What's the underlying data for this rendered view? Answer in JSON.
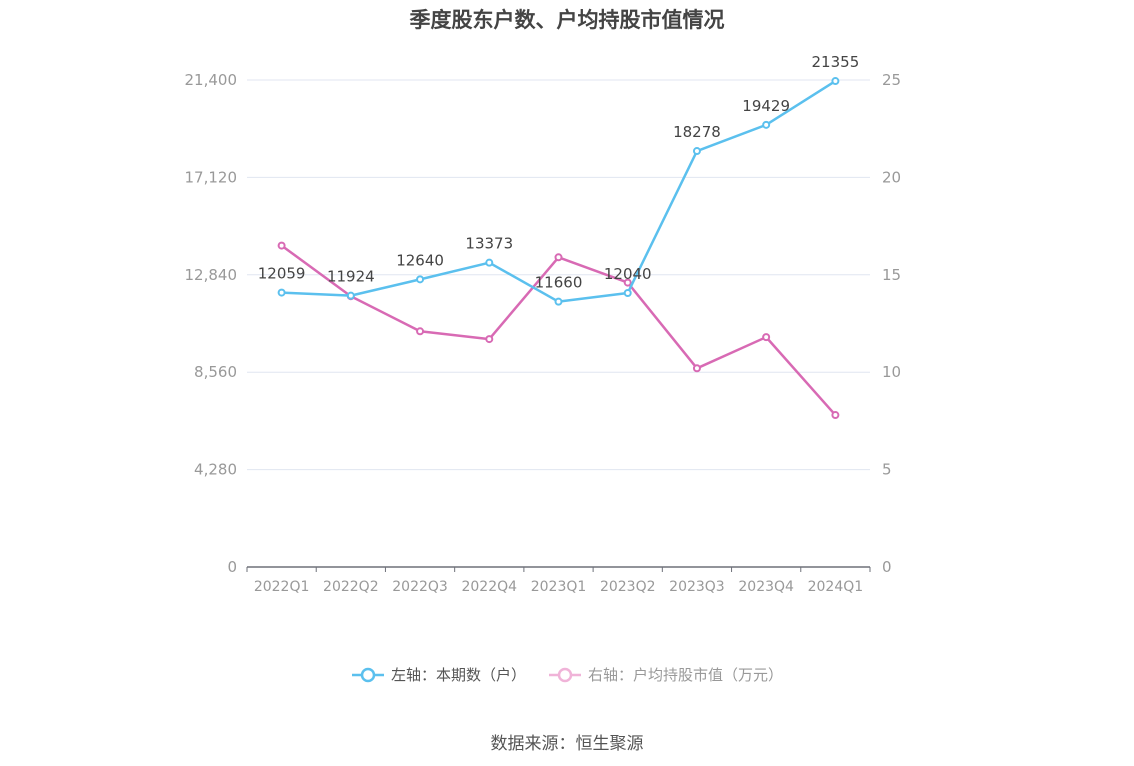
{
  "title": "季度股东户数、户均持股市值情况",
  "source": "数据来源：恒生聚源",
  "chart_data": {
    "type": "line",
    "categories": [
      "2022Q1",
      "2022Q2",
      "2022Q3",
      "2022Q4",
      "2023Q1",
      "2023Q2",
      "2023Q3",
      "2023Q4",
      "2024Q1"
    ],
    "left_axis": {
      "ylim": [
        0,
        21400
      ],
      "ticks": [
        "0",
        "4,280",
        "8,560",
        "12,840",
        "17,120",
        "21,400"
      ]
    },
    "right_axis": {
      "ylim": [
        0,
        25
      ],
      "ticks": [
        "0",
        "5",
        "10",
        "15",
        "20",
        "25"
      ]
    },
    "grid": true,
    "legend_position": "bottom",
    "series": [
      {
        "name": "左轴：本期数（户）",
        "axis": "left",
        "color": "#5BC0EE",
        "values": [
          12059,
          11924,
          12640,
          13373,
          11660,
          12040,
          18278,
          19429,
          21355
        ],
        "labels": [
          "12059",
          "11924",
          "12640",
          "13373",
          "11660",
          "12040",
          "18278",
          "19429",
          "21355"
        ]
      },
      {
        "name": "右轴：户均持股市值（万元）",
        "axis": "right",
        "color": "#D86AB4",
        "values": [
          16.5,
          13.9,
          12.1,
          11.7,
          15.9,
          14.6,
          10.2,
          11.8,
          7.8
        ]
      }
    ]
  }
}
